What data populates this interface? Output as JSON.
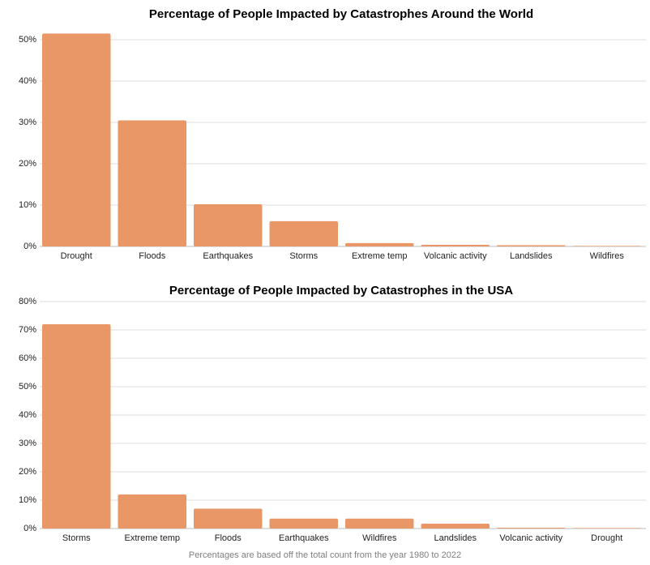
{
  "colors": {
    "bar": "#e8915f",
    "grid": "#dcdcdc",
    "axis": "#bdbdbd"
  },
  "footnote": "Percentages are based off the total count from the year 1980 to 2022",
  "chart_data": [
    {
      "type": "bar",
      "title": "Percentage of People Impacted by Catastrophes Around the World",
      "categories": [
        "Drought",
        "Floods",
        "Earthquakes",
        "Storms",
        "Extreme temp",
        "Volcanic activity",
        "Landslides",
        "Wildfires"
      ],
      "values": [
        51.5,
        30.5,
        10.2,
        6.1,
        0.8,
        0.4,
        0.3,
        0.05
      ],
      "ylim": [
        0,
        50
      ],
      "yticks": [
        0,
        10,
        20,
        30,
        40,
        50
      ],
      "ytick_labels": [
        "0%",
        "10%",
        "20%",
        "30%",
        "40%",
        "50%"
      ],
      "grid": true
    },
    {
      "type": "bar",
      "title": "Percentage of People Impacted by Catastrophes in the USA",
      "categories": [
        "Storms",
        "Extreme temp",
        "Floods",
        "Earthquakes",
        "Wildfires",
        "Landslides",
        "Volcanic activity",
        "Drought"
      ],
      "values": [
        72.0,
        12.0,
        7.0,
        3.5,
        3.5,
        1.7,
        0.3,
        0.1
      ],
      "ylim": [
        0,
        80
      ],
      "yticks": [
        0,
        10,
        20,
        30,
        40,
        50,
        60,
        70,
        80
      ],
      "ytick_labels": [
        "0%",
        "10%",
        "20%",
        "30%",
        "40%",
        "50%",
        "60%",
        "70%",
        "80%"
      ],
      "grid": true
    }
  ]
}
